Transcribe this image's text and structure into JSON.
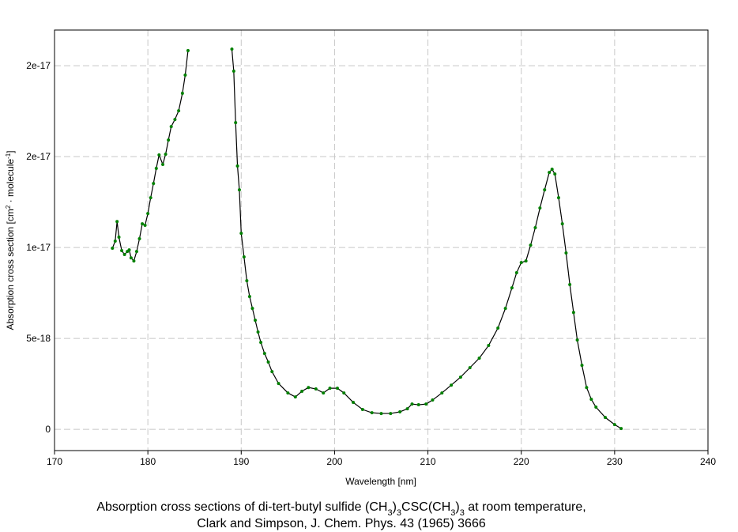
{
  "chart_data": {
    "type": "line",
    "xlabel": "Wavelength [nm]",
    "ylabel_parts": [
      "Absorption cross section [cm",
      "2",
      " · molecule",
      "-1",
      "]"
    ],
    "caption": [
      [
        "Absorption cross sections of di-tert-butyl sulfide (CH",
        "3",
        ")",
        "3",
        "CSC(CH",
        "3",
        ")",
        "3",
        " at room temperature,"
      ],
      [
        "Clark and Simpson, J. Chem. Phys. 43 (1965) 3666"
      ]
    ],
    "xlim": [
      170,
      240
    ],
    "xticks": [
      170,
      180,
      190,
      200,
      210,
      220,
      230,
      240
    ],
    "ylim": [
      -1.17e-18,
      2.196e-17
    ],
    "yticks": [
      0,
      5e-18,
      1e-17,
      {
        "value": 1.5e-17,
        "label": "2e-17"
      },
      2e-17
    ],
    "grid": true,
    "series": [
      {
        "color": "#000000",
        "marker_color": "#008000",
        "x": [
          176.2,
          176.5,
          176.7,
          176.9,
          177.2,
          177.5,
          177.8,
          178.0,
          178.2,
          178.5,
          178.8,
          179.1,
          179.4,
          179.7,
          180.0,
          180.3,
          180.6,
          180.9,
          181.2,
          181.6,
          181.9,
          182.2,
          182.5,
          182.9,
          183.3,
          183.7,
          184.0,
          184.3,
          186.5,
          189.0,
          189.2,
          189.4,
          189.6,
          189.8,
          190.0,
          190.3,
          190.6,
          190.9,
          191.2,
          191.5,
          191.8,
          192.1,
          192.5,
          192.9,
          193.3,
          194.0,
          195.0,
          195.8,
          196.5,
          197.2,
          198.0,
          198.8,
          199.5,
          200.3,
          201.0,
          202.0,
          203.0,
          204.0,
          205.0,
          206.0,
          207.0,
          207.8,
          208.3,
          209.0,
          209.8,
          210.5,
          211.5,
          212.5,
          213.5,
          214.5,
          215.5,
          216.5,
          217.5,
          218.3,
          219.0,
          219.5,
          220.0,
          220.5,
          221.0,
          221.5,
          222.0,
          222.5,
          223.0,
          223.3,
          223.6,
          224.0,
          224.4,
          224.8,
          225.2,
          225.6,
          226.0,
          226.5,
          227.0,
          227.5,
          228.0,
          229.0,
          230.0,
          230.7
        ],
        "values": [
          9.96e-18,
          1.035e-17,
          1.143e-17,
          1.057e-17,
          9.83e-18,
          9.61e-18,
          9.78e-18,
          9.87e-18,
          9.43e-18,
          9.26e-18,
          9.78e-18,
          1.048e-17,
          1.13e-17,
          1.122e-17,
          1.187e-17,
          1.274e-17,
          1.352e-17,
          1.435e-17,
          1.509e-17,
          1.457e-17,
          1.513e-17,
          1.591e-17,
          1.665e-17,
          1.704e-17,
          1.752e-17,
          1.848e-17,
          1.948e-17,
          2.083e-17,
          null,
          2.091e-17,
          1.97e-17,
          1.687e-17,
          1.448e-17,
          1.317e-17,
          1.078e-17,
          9.48e-18,
          8.17e-18,
          7.3e-18,
          6.65e-18,
          6e-18,
          5.35e-18,
          4.78e-18,
          4.17e-18,
          3.7e-18,
          3.17e-18,
          2.52e-18,
          2e-18,
          1.78e-18,
          2.09e-18,
          2.3e-18,
          2.22e-18,
          2e-18,
          2.26e-18,
          2.26e-18,
          2e-18,
          1.48e-18,
          1.09e-18,
          9.1e-19,
          8.7e-19,
          8.7e-19,
          9.6e-19,
          1.13e-18,
          1.39e-18,
          1.35e-18,
          1.39e-18,
          1.61e-18,
          2e-18,
          2.43e-18,
          2.87e-18,
          3.39e-18,
          3.91e-18,
          4.61e-18,
          5.57e-18,
          6.65e-18,
          7.78e-18,
          8.61e-18,
          9.17e-18,
          9.26e-18,
          1.013e-17,
          1.109e-17,
          1.217e-17,
          1.317e-17,
          1.413e-17,
          1.43e-17,
          1.404e-17,
          1.274e-17,
          1.13e-17,
          9.7e-18,
          7.96e-18,
          6.43e-18,
          4.91e-18,
          3.52e-18,
          2.3e-18,
          1.65e-18,
          1.22e-18,
          6.5e-19,
          2.6e-19,
          4e-20
        ]
      }
    ]
  }
}
